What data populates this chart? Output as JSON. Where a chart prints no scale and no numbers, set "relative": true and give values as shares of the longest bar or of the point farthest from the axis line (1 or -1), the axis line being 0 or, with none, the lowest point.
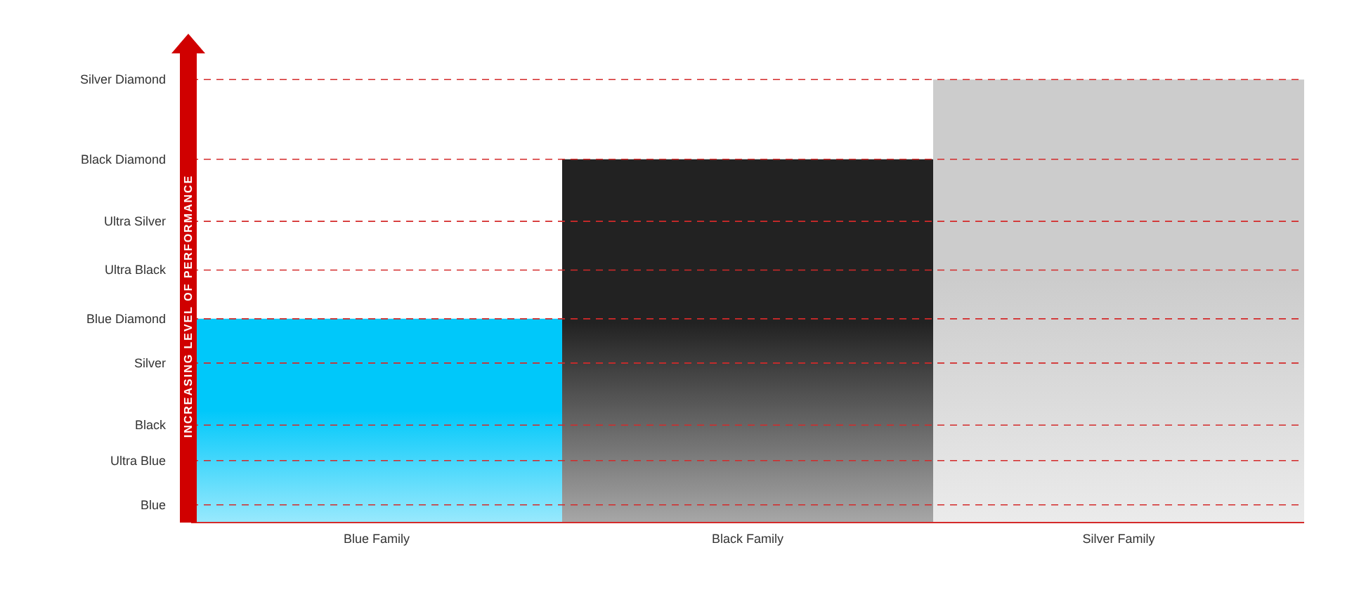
{
  "chart_data": {
    "type": "bar",
    "relative": true,
    "ylabel": "INCREASING LEVEL OF PERFORMANCE",
    "categories": [
      "Blue Family",
      "Black Family",
      "Silver Family"
    ],
    "values": [
      0.46,
      0.82,
      1
    ],
    "colors": [
      "#00c8fa",
      "#222222",
      "#cccccc"
    ],
    "ref_lines": [
      {
        "axis": "y",
        "value": 0.04,
        "label": "Blue",
        "color": "#d42a2a",
        "line_style": "dashed"
      },
      {
        "axis": "y",
        "value": 0.14,
        "label": "Ultra Blue",
        "color": "#d42a2a",
        "line_style": "dashed"
      },
      {
        "axis": "y",
        "value": 0.22,
        "label": "Black",
        "color": "#d42a2a",
        "line_style": "dashed"
      },
      {
        "axis": "y",
        "value": 0.36,
        "label": "Silver",
        "color": "#d42a2a",
        "line_style": "dashed"
      },
      {
        "axis": "y",
        "value": 0.46,
        "label": "Blue Diamond",
        "color": "#d42a2a",
        "line_style": "dashed"
      },
      {
        "axis": "y",
        "value": 0.57,
        "label": "Ultra Black",
        "color": "#d42a2a",
        "line_style": "dashed"
      },
      {
        "axis": "y",
        "value": 0.68,
        "label": "Ultra Silver",
        "color": "#d42a2a",
        "line_style": "dashed"
      },
      {
        "axis": "y",
        "value": 0.82,
        "label": "Black Diamond",
        "color": "#d42a2a",
        "line_style": "dashed"
      },
      {
        "axis": "y",
        "value": 1,
        "label": "Silver Diamond",
        "color": "#d42a2a",
        "line_style": "dashed"
      }
    ]
  }
}
